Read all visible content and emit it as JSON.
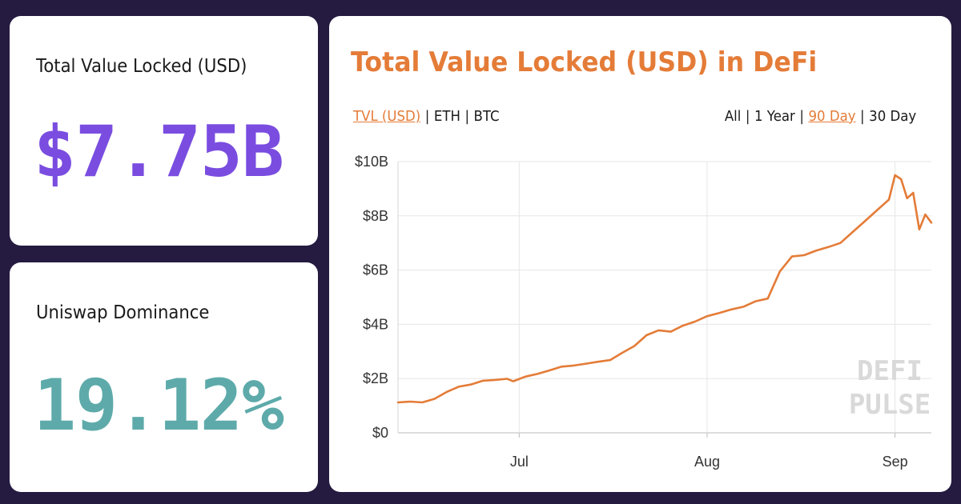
{
  "tvl_card": {
    "label": "Total Value Locked (USD)",
    "value": "$7.75B"
  },
  "dominance_card": {
    "label": "Uniswap Dominance",
    "value": "19.12%"
  },
  "chart_card": {
    "title": "Total Value Locked (USD) in DeFi",
    "unit_options": [
      {
        "label": "TVL (USD)",
        "active": true
      },
      {
        "label": "ETH",
        "active": false
      },
      {
        "label": "BTC",
        "active": false
      }
    ],
    "range_options": [
      {
        "label": "All",
        "active": false
      },
      {
        "label": "1 Year",
        "active": false
      },
      {
        "label": "90 Day",
        "active": true
      },
      {
        "label": "30 Day",
        "active": false
      }
    ],
    "watermark": [
      "DEFI",
      "PULSE"
    ]
  },
  "colors": {
    "background": "#251a40",
    "tvl_value": "#7a4de0",
    "dominance_value": "#5eaaaa",
    "accent": "#e47c38",
    "line": "#e47c38"
  },
  "chart_data": {
    "type": "line",
    "title": "Total Value Locked (USD) in DeFi",
    "xlabel": "",
    "ylabel": "",
    "ylim": [
      0,
      10
    ],
    "y_unit": "billions USD",
    "y_ticks": [
      0,
      2,
      4,
      6,
      8,
      10
    ],
    "y_tick_labels": [
      "$0",
      "$2B",
      "$4B",
      "$6B",
      "$8B",
      "$10B"
    ],
    "x_ticks": [
      {
        "label": "Jul",
        "day": 1
      },
      {
        "label": "Aug",
        "day": 32
      },
      {
        "label": "Sep",
        "day": 63
      }
    ],
    "grid": true,
    "series": [
      {
        "x": [
          -19,
          -17,
          -15,
          -13,
          -11,
          -9,
          -7,
          -5,
          -3,
          -1,
          0,
          2,
          4,
          6,
          8,
          10,
          12,
          14,
          16,
          18,
          20,
          22,
          24,
          26,
          28,
          30,
          32,
          34,
          36,
          38,
          40,
          42,
          44,
          46,
          48,
          50,
          52,
          54,
          56,
          58,
          60,
          62,
          63,
          64,
          65,
          66,
          67,
          68,
          69
        ],
        "values": [
          1.12,
          1.15,
          1.12,
          1.25,
          1.5,
          1.7,
          1.78,
          1.92,
          1.95,
          1.99,
          1.9,
          2.07,
          2.17,
          2.3,
          2.44,
          2.48,
          2.55,
          2.62,
          2.68,
          2.95,
          3.2,
          3.6,
          3.78,
          3.73,
          3.95,
          4.1,
          4.3,
          4.42,
          4.55,
          4.65,
          4.85,
          4.95,
          5.95,
          6.5,
          6.55,
          6.72,
          6.85,
          7.0,
          7.4,
          7.8,
          8.2,
          8.6,
          9.5,
          9.35,
          8.65,
          8.85,
          7.5,
          8.05,
          7.75
        ]
      }
    ]
  }
}
